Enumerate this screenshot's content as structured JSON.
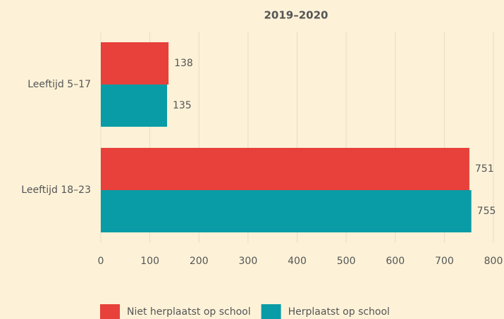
{
  "chart_data": {
    "type": "bar",
    "orientation": "horizontal",
    "title": "2019–2020",
    "categories": [
      "Leeftijd 5–17",
      "Leeftijd 18–23"
    ],
    "series": [
      {
        "name": "Niet herplaatst op school",
        "color": "#e8403a",
        "values": [
          138,
          751
        ]
      },
      {
        "name": "Herplaatst op school",
        "color": "#0a9ca6",
        "values": [
          135,
          755
        ]
      }
    ],
    "xlim": [
      0,
      800
    ],
    "xticks": [
      0,
      100,
      200,
      300,
      400,
      500,
      600,
      700,
      800
    ],
    "grid": true,
    "legend": "bottom"
  }
}
